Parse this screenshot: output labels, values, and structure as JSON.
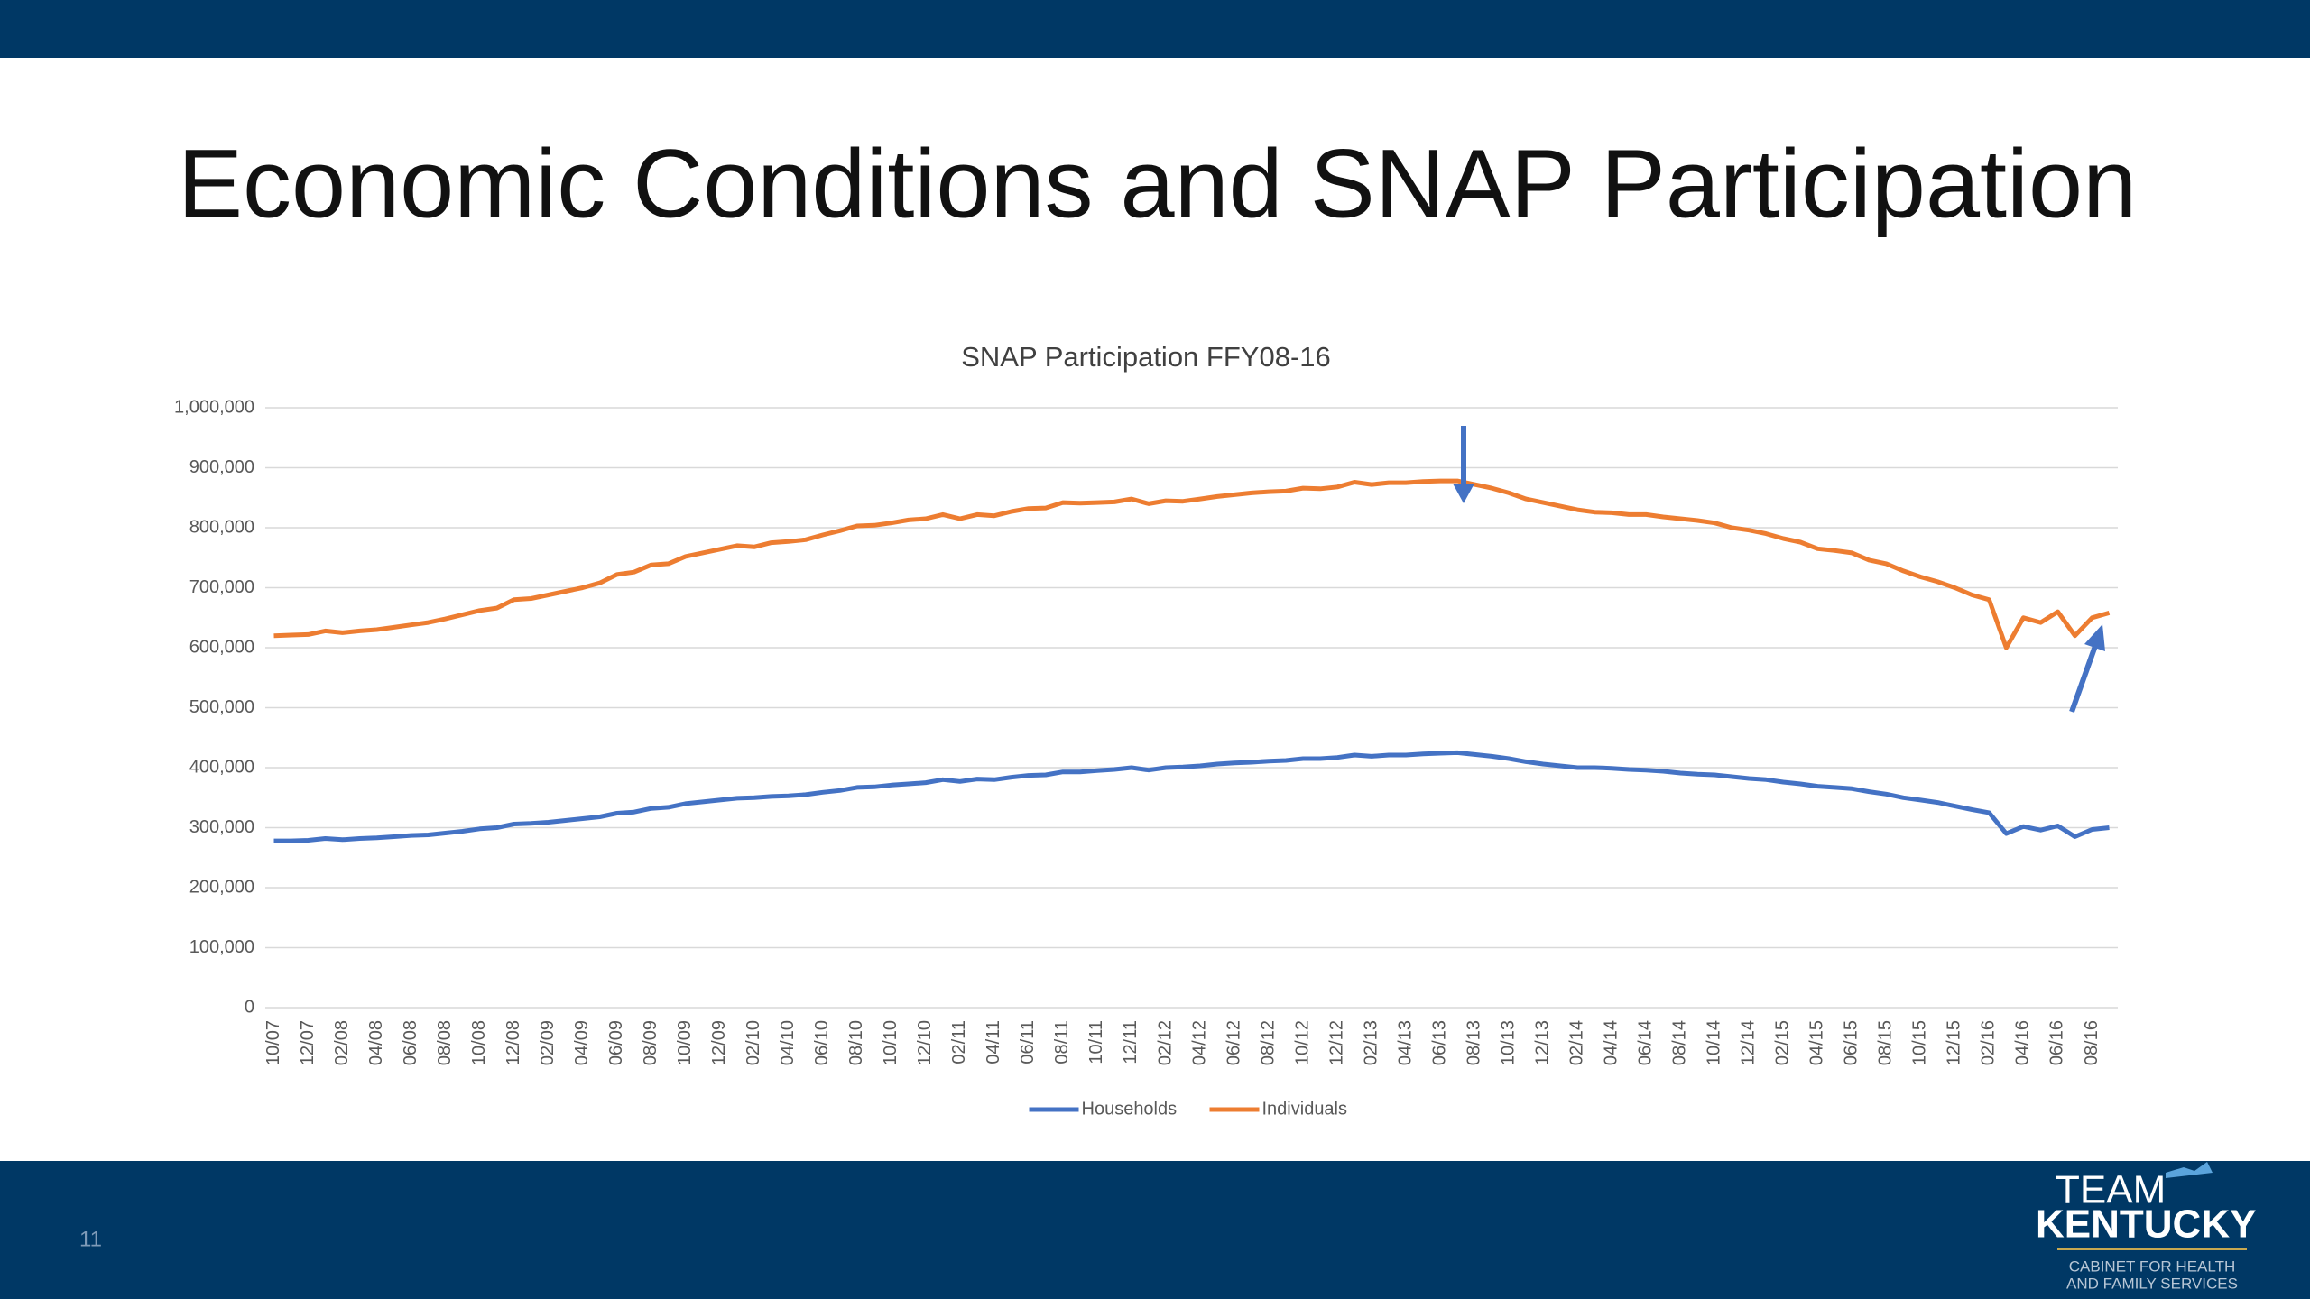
{
  "slide_title": "Economic Conditions and SNAP Participation",
  "page_number": "11",
  "logo": {
    "line1": "TEAM",
    "line2": "KENTUCKY",
    "line3": "CABINET FOR HEALTH",
    "line4": "AND FAMILY SERVICES"
  },
  "chart_data": {
    "type": "line",
    "title": "SNAP Participation FFY08-16",
    "categories": [
      "10/07",
      null,
      "12/07",
      null,
      "02/08",
      null,
      "04/08",
      null,
      "06/08",
      null,
      "08/08",
      null,
      "10/08",
      null,
      "12/08",
      null,
      "02/09",
      null,
      "04/09",
      null,
      "06/09",
      null,
      "08/09",
      null,
      "10/09",
      null,
      "12/09",
      null,
      "02/10",
      null,
      "04/10",
      null,
      "06/10",
      null,
      "08/10",
      null,
      "10/10",
      null,
      "12/10",
      null,
      "02/11",
      null,
      "04/11",
      null,
      "06/11",
      null,
      "08/11",
      null,
      "10/11",
      null,
      "12/11",
      null,
      "02/12",
      null,
      "04/12",
      null,
      "06/12",
      null,
      "08/12",
      null,
      "10/12",
      null,
      "12/12",
      null,
      "02/13",
      null,
      "04/13",
      null,
      "06/13",
      null,
      "08/13",
      null,
      "10/13",
      null,
      "12/13",
      null,
      "02/14",
      null,
      "04/14",
      null,
      "06/14",
      null,
      "08/14",
      null,
      "10/14",
      null,
      "12/14",
      null,
      "02/15",
      null,
      "04/15",
      null,
      "06/15",
      null,
      "08/15",
      null,
      "10/15",
      null,
      "12/15",
      null,
      "02/16",
      null,
      "04/16",
      null,
      "06/16",
      null,
      "08/16",
      null
    ],
    "series": [
      {
        "name": "Households",
        "color": "#4472c4",
        "values": [
          278000,
          278000,
          279000,
          282000,
          280000,
          282000,
          283000,
          285000,
          287000,
          288000,
          291000,
          294000,
          298000,
          300000,
          306000,
          307000,
          309000,
          312000,
          315000,
          318000,
          324000,
          326000,
          332000,
          334000,
          340000,
          343000,
          346000,
          349000,
          350000,
          352000,
          353000,
          355000,
          359000,
          362000,
          367000,
          368000,
          371000,
          373000,
          375000,
          380000,
          377000,
          381000,
          380000,
          384000,
          387000,
          388000,
          393000,
          393000,
          395000,
          397000,
          400000,
          396000,
          400000,
          401000,
          403000,
          406000,
          408000,
          409000,
          411000,
          412000,
          415000,
          415000,
          417000,
          421000,
          419000,
          421000,
          421000,
          423000,
          424000,
          425000,
          422000,
          419000,
          415000,
          410000,
          406000,
          403000,
          400000,
          400000,
          399000,
          397000,
          396000,
          394000,
          391000,
          389000,
          388000,
          385000,
          382000,
          380000,
          376000,
          373000,
          369000,
          367000,
          365000,
          360000,
          356000,
          350000,
          346000,
          342000,
          336000,
          330000,
          325000,
          290000,
          302000,
          296000,
          303000,
          285000,
          297000,
          300000
        ]
      },
      {
        "name": "Individuals",
        "color": "#ed7d31",
        "values": [
          620000,
          621000,
          622000,
          628000,
          625000,
          628000,
          630000,
          634000,
          638000,
          642000,
          648000,
          655000,
          662000,
          666000,
          680000,
          682000,
          688000,
          694000,
          700000,
          708000,
          722000,
          726000,
          738000,
          740000,
          752000,
          758000,
          764000,
          770000,
          768000,
          775000,
          777000,
          780000,
          788000,
          795000,
          803000,
          804000,
          808000,
          813000,
          815000,
          822000,
          815000,
          822000,
          820000,
          827000,
          832000,
          833000,
          842000,
          841000,
          842000,
          843000,
          848000,
          840000,
          845000,
          844000,
          848000,
          852000,
          855000,
          858000,
          860000,
          861000,
          866000,
          865000,
          868000,
          876000,
          872000,
          875000,
          875000,
          877000,
          878000,
          878000,
          872000,
          866000,
          858000,
          848000,
          842000,
          836000,
          830000,
          826000,
          825000,
          822000,
          822000,
          818000,
          815000,
          812000,
          808000,
          800000,
          796000,
          790000,
          782000,
          776000,
          765000,
          762000,
          758000,
          746000,
          740000,
          728000,
          718000,
          710000,
          700000,
          688000,
          680000,
          600000,
          650000,
          642000,
          660000,
          620000,
          650000,
          658000
        ]
      }
    ],
    "ylim": [
      0,
      1000000
    ],
    "yticks": [
      0,
      {
        "value": 100000,
        "label": "100,000"
      },
      {
        "value": 200000,
        "label": "200,000"
      },
      {
        "value": 300000,
        "label": "300,000"
      },
      {
        "value": 400000,
        "label": "400,000"
      },
      {
        "value": 500000,
        "label": "500,000"
      },
      {
        "value": 600000,
        "label": "600,000"
      },
      {
        "value": 700000,
        "label": "700,000"
      },
      {
        "value": 800000,
        "label": "800,000"
      },
      {
        "value": 900000,
        "label": "900,000"
      },
      {
        "value": 1000000,
        "label": "1,000,000"
      }
    ],
    "grid": true,
    "legend": "bottom"
  }
}
